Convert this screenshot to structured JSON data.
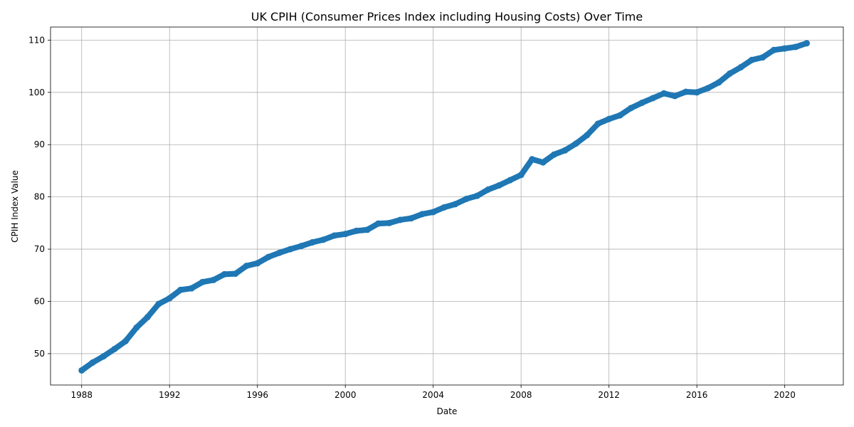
{
  "chart_data": {
    "type": "scatter",
    "title": "UK CPIH (Consumer Prices Index including Housing Costs) Over Time",
    "xlabel": "Date",
    "ylabel": "CPIH Index Value",
    "xlim": [
      "1986-08",
      "2022-09"
    ],
    "ylim": [
      44,
      112.5
    ],
    "x_ticks": [
      "1988",
      "1992",
      "1996",
      "2000",
      "2004",
      "2008",
      "2012",
      "2016",
      "2020"
    ],
    "y_ticks": [
      50,
      60,
      70,
      80,
      90,
      100,
      110
    ],
    "grid": true,
    "legend": "none",
    "color": "#1f77b4",
    "series": [
      {
        "x": [
          "1988-01",
          "1988-07",
          "1989-01",
          "1989-07",
          "1990-01",
          "1990-07",
          "1991-01",
          "1991-07",
          "1992-01",
          "1992-07",
          "1993-01",
          "1993-07",
          "1994-01",
          "1994-07",
          "1995-01",
          "1995-07",
          "1996-01",
          "1996-07",
          "1997-01",
          "1997-07",
          "1998-01",
          "1998-07",
          "1999-01",
          "1999-07",
          "2000-01",
          "2000-07",
          "2001-01",
          "2001-07",
          "2002-01",
          "2002-07",
          "2003-01",
          "2003-07",
          "2004-01",
          "2004-07",
          "2005-01",
          "2005-07",
          "2006-01",
          "2006-07",
          "2007-01",
          "2007-07",
          "2008-01",
          "2008-07",
          "2009-01",
          "2009-07",
          "2010-01",
          "2010-07",
          "2011-01",
          "2011-07",
          "2012-01",
          "2012-07",
          "2013-01",
          "2013-07",
          "2014-01",
          "2014-07",
          "2015-01",
          "2015-07",
          "2016-01",
          "2016-07",
          "2017-01",
          "2017-07",
          "2018-01",
          "2018-07",
          "2019-01",
          "2019-07",
          "2020-01",
          "2020-07",
          "2021-01"
        ],
        "y": [
          46.8,
          48.3,
          49.5,
          50.9,
          52.4,
          55.0,
          57.0,
          59.5,
          60.6,
          62.2,
          62.5,
          63.7,
          64.1,
          65.2,
          65.3,
          66.8,
          67.3,
          68.5,
          69.3,
          70.0,
          70.6,
          71.3,
          71.8,
          72.6,
          72.9,
          73.5,
          73.7,
          74.9,
          75.0,
          75.6,
          75.9,
          76.7,
          77.1,
          78.0,
          78.6,
          79.6,
          80.2,
          81.4,
          82.2,
          83.2,
          84.2,
          87.2,
          86.6,
          88.1,
          88.9,
          90.2,
          91.8,
          94.0,
          94.9,
          95.6,
          97.0,
          98.0,
          98.9,
          99.8,
          99.3,
          100.1,
          100.0,
          100.8,
          101.9,
          103.6,
          104.8,
          106.2,
          106.7,
          108.1,
          108.4,
          108.7,
          109.4
        ]
      }
    ]
  }
}
